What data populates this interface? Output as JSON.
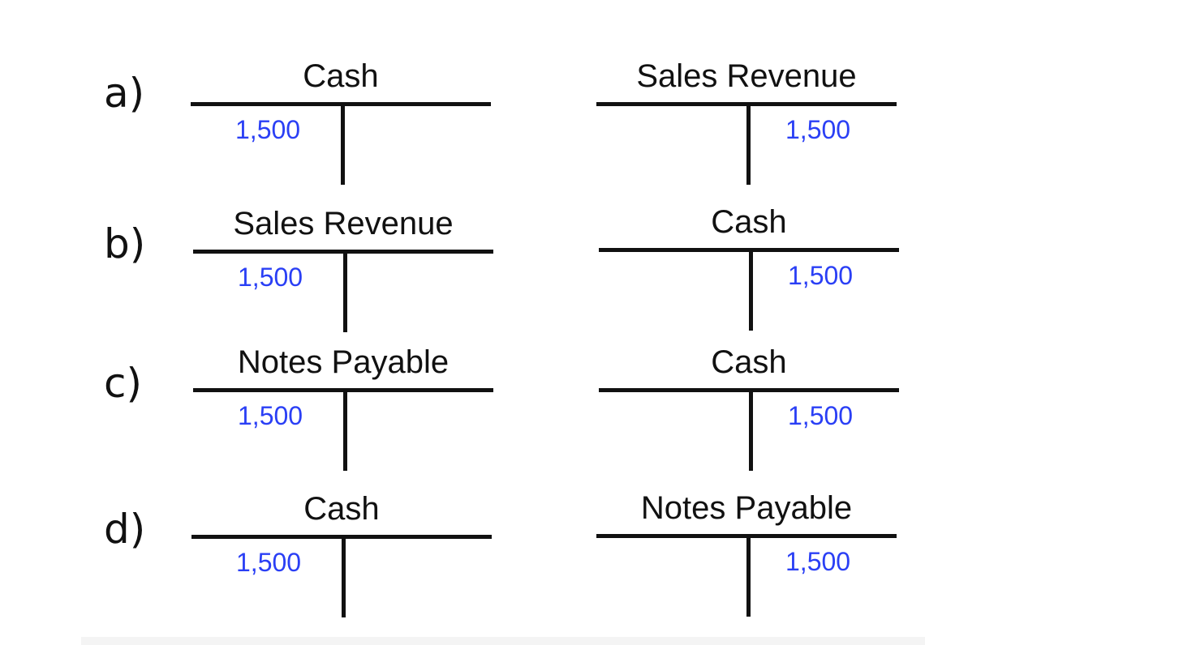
{
  "options": [
    {
      "label": "a)",
      "left": {
        "title": "Cash",
        "debit": "1,500",
        "credit": ""
      },
      "right": {
        "title": "Sales Revenue",
        "debit": "",
        "credit": "1,500"
      }
    },
    {
      "label": "b)",
      "left": {
        "title": "Sales Revenue",
        "debit": "1,500",
        "credit": ""
      },
      "right": {
        "title": "Cash",
        "debit": "",
        "credit": "1,500"
      }
    },
    {
      "label": "c)",
      "left": {
        "title": "Notes Payable",
        "debit": "1,500",
        "credit": ""
      },
      "right": {
        "title": "Cash",
        "debit": "",
        "credit": "1,500"
      }
    },
    {
      "label": "d)",
      "left": {
        "title": "Cash",
        "debit": "1,500",
        "credit": ""
      },
      "right": {
        "title": "Notes Payable",
        "debit": "",
        "credit": "1,500"
      }
    }
  ],
  "colors": {
    "amount": "#2a3ff5",
    "line": "#111111"
  }
}
